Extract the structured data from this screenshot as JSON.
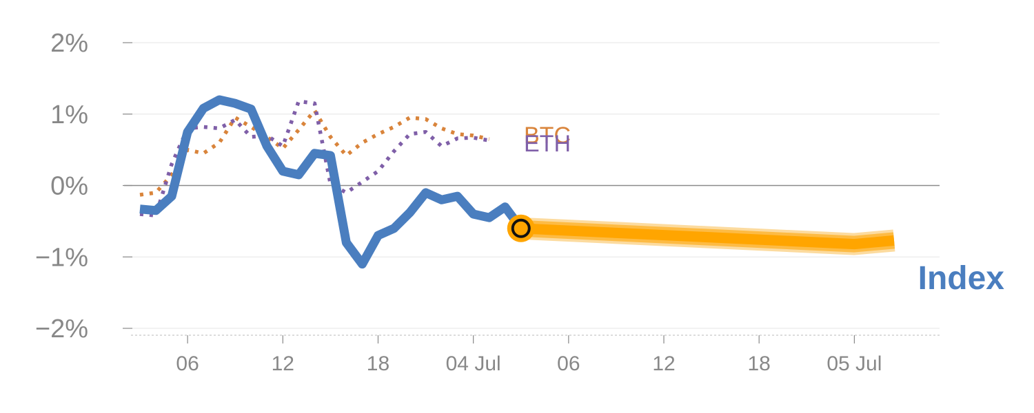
{
  "chart_data": {
    "type": "line",
    "title": "",
    "xlabel": "",
    "ylabel": "",
    "ylim": [
      -2,
      2
    ],
    "y_ticks": [
      {
        "value": 2,
        "label": "2%"
      },
      {
        "value": 1,
        "label": "1%"
      },
      {
        "value": 0,
        "label": "0%"
      },
      {
        "value": -1,
        "label": "−1%"
      },
      {
        "value": -2,
        "label": "−2%"
      }
    ],
    "x_range": [
      "2024-07-03T02:00",
      "2024-07-05T06:00"
    ],
    "x_ticks": [
      {
        "t": "2024-07-03T06:00",
        "label": "06"
      },
      {
        "t": "2024-07-03T12:00",
        "label": "12"
      },
      {
        "t": "2024-07-03T18:00",
        "label": "18"
      },
      {
        "t": "2024-07-04T00:00",
        "label": "04 Jul"
      },
      {
        "t": "2024-07-04T06:00",
        "label": "06"
      },
      {
        "t": "2024-07-04T12:00",
        "label": "12"
      },
      {
        "t": "2024-07-04T18:00",
        "label": "18"
      },
      {
        "t": "2024-07-05T00:00",
        "label": "05 Jul"
      }
    ],
    "grid": true,
    "zero_line": true,
    "series": [
      {
        "name": "BTC",
        "style": "dotted",
        "color": "#d9843b",
        "points": [
          [
            "2024-07-03T03:00",
            -0.13
          ],
          [
            "2024-07-03T04:00",
            -0.1
          ],
          [
            "2024-07-03T05:00",
            0.15
          ],
          [
            "2024-07-03T06:00",
            0.5
          ],
          [
            "2024-07-03T07:00",
            0.45
          ],
          [
            "2024-07-03T08:00",
            0.6
          ],
          [
            "2024-07-03T09:00",
            0.95
          ],
          [
            "2024-07-03T10:00",
            0.82
          ],
          [
            "2024-07-03T11:00",
            0.68
          ],
          [
            "2024-07-03T12:00",
            0.52
          ],
          [
            "2024-07-03T13:00",
            0.78
          ],
          [
            "2024-07-03T14:00",
            1.05
          ],
          [
            "2024-07-03T15:00",
            0.68
          ],
          [
            "2024-07-03T16:00",
            0.42
          ],
          [
            "2024-07-03T17:00",
            0.6
          ],
          [
            "2024-07-03T18:00",
            0.72
          ],
          [
            "2024-07-03T19:00",
            0.82
          ],
          [
            "2024-07-03T20:00",
            0.95
          ],
          [
            "2024-07-03T21:00",
            0.93
          ],
          [
            "2024-07-03T22:00",
            0.8
          ],
          [
            "2024-07-03T23:00",
            0.72
          ],
          [
            "2024-07-04T00:00",
            0.7
          ],
          [
            "2024-07-04T01:00",
            0.65
          ]
        ]
      },
      {
        "name": "ETH",
        "style": "dotted",
        "color": "#7f5fa8",
        "points": [
          [
            "2024-07-03T03:00",
            -0.4
          ],
          [
            "2024-07-03T04:00",
            -0.42
          ],
          [
            "2024-07-03T05:00",
            0.3
          ],
          [
            "2024-07-03T06:00",
            0.8
          ],
          [
            "2024-07-03T07:00",
            0.82
          ],
          [
            "2024-07-03T08:00",
            0.8
          ],
          [
            "2024-07-03T09:00",
            0.92
          ],
          [
            "2024-07-03T10:00",
            0.68
          ],
          [
            "2024-07-03T11:00",
            0.7
          ],
          [
            "2024-07-03T12:00",
            0.55
          ],
          [
            "2024-07-03T13:00",
            1.18
          ],
          [
            "2024-07-03T14:00",
            1.15
          ],
          [
            "2024-07-03T15:00",
            0.02
          ],
          [
            "2024-07-03T16:00",
            -0.1
          ],
          [
            "2024-07-03T17:00",
            0.05
          ],
          [
            "2024-07-03T18:00",
            0.2
          ],
          [
            "2024-07-03T19:00",
            0.48
          ],
          [
            "2024-07-03T20:00",
            0.72
          ],
          [
            "2024-07-03T21:00",
            0.75
          ],
          [
            "2024-07-03T22:00",
            0.55
          ],
          [
            "2024-07-03T23:00",
            0.66
          ],
          [
            "2024-07-04T00:00",
            0.67
          ],
          [
            "2024-07-04T01:00",
            0.63
          ]
        ]
      },
      {
        "name": "Index",
        "style": "solid",
        "color": "#4a7ebf",
        "points": [
          [
            "2024-07-03T03:00",
            -0.33
          ],
          [
            "2024-07-03T04:00",
            -0.35
          ],
          [
            "2024-07-03T05:00",
            -0.15
          ],
          [
            "2024-07-03T06:00",
            0.75
          ],
          [
            "2024-07-03T07:00",
            1.08
          ],
          [
            "2024-07-03T08:00",
            1.2
          ],
          [
            "2024-07-03T09:00",
            1.15
          ],
          [
            "2024-07-03T10:00",
            1.07
          ],
          [
            "2024-07-03T11:00",
            0.55
          ],
          [
            "2024-07-03T12:00",
            0.2
          ],
          [
            "2024-07-03T13:00",
            0.15
          ],
          [
            "2024-07-03T14:00",
            0.45
          ],
          [
            "2024-07-03T15:00",
            0.42
          ],
          [
            "2024-07-03T16:00",
            -0.8
          ],
          [
            "2024-07-03T17:00",
            -1.1
          ],
          [
            "2024-07-03T18:00",
            -0.7
          ],
          [
            "2024-07-03T19:00",
            -0.6
          ],
          [
            "2024-07-03T20:00",
            -0.38
          ],
          [
            "2024-07-03T21:00",
            -0.1
          ],
          [
            "2024-07-03T22:00",
            -0.2
          ],
          [
            "2024-07-03T23:00",
            -0.15
          ],
          [
            "2024-07-04T00:00",
            -0.4
          ],
          [
            "2024-07-04T01:00",
            -0.45
          ],
          [
            "2024-07-04T02:00",
            -0.3
          ],
          [
            "2024-07-04T03:00",
            -0.6
          ]
        ]
      },
      {
        "name": "",
        "style": "projection",
        "color": "#ffa500",
        "points": [
          [
            "2024-07-04T03:00",
            -0.6
          ],
          [
            "2024-07-05T00:00",
            -0.82
          ],
          [
            "2024-07-05T02:30",
            -0.77
          ]
        ]
      }
    ],
    "current_point": {
      "t": "2024-07-04T03:00",
      "value": -0.6
    },
    "labels": [
      {
        "series": "BTC",
        "text": "BTC"
      },
      {
        "series": "ETH",
        "text": "ETH"
      },
      {
        "series": "Index",
        "text": "Index"
      }
    ]
  }
}
